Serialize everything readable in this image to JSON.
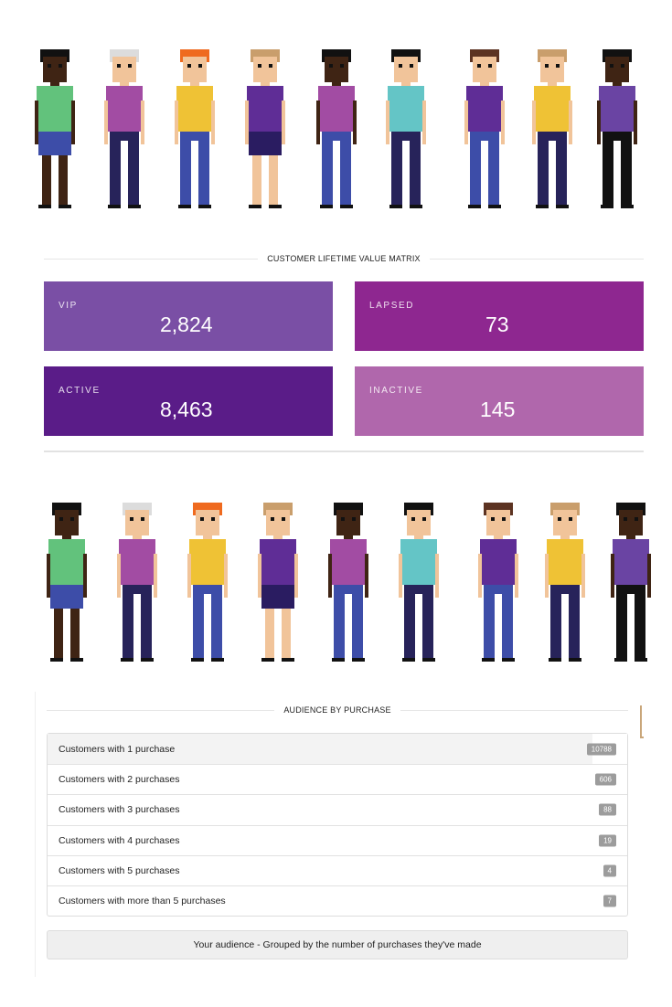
{
  "matrix": {
    "title": "CUSTOMER LIFETIME VALUE MATRIX",
    "tiles": [
      {
        "label": "VIP",
        "value": "2,824",
        "color": "#7a4fa5"
      },
      {
        "label": "LAPSED",
        "value": "73",
        "color": "#8e2790"
      },
      {
        "label": "ACTIVE",
        "value": "8,463",
        "color": "#5a1c88"
      },
      {
        "label": "INACTIVE",
        "value": "145",
        "color": "#b067ac"
      }
    ]
  },
  "audience": {
    "title": "AUDIENCE BY PURCHASE",
    "items": [
      {
        "label": "Customers with 1 purchase",
        "count": "10788"
      },
      {
        "label": "Customers with 2 purchases",
        "count": "606"
      },
      {
        "label": "Customers with 3 purchases",
        "count": "88"
      },
      {
        "label": "Customers with 4 purchases",
        "count": "19"
      },
      {
        "label": "Customers with 5 purchases",
        "count": "4"
      },
      {
        "label": "Customers with more than 5 purchases",
        "count": "7"
      }
    ],
    "footer": "Your audience - Grouped by the number of purchases they've made"
  },
  "people": [
    {
      "name": "person-1",
      "skin": "#3f2414",
      "hair": "#111111",
      "shirt": "#62c27c",
      "pants": "#3d4da8",
      "legs": "#3f2414",
      "skirt": true
    },
    {
      "name": "person-2",
      "skin": "#f1c49a",
      "hair": "#dcdcdc",
      "shirt": "#a24ca3",
      "pants": "#27235a",
      "legs": null,
      "skirt": false
    },
    {
      "name": "person-3",
      "skin": "#f1c49a",
      "hair": "#ef6a1f",
      "shirt": "#efc235",
      "pants": "#3d4da8",
      "legs": null,
      "skirt": false
    },
    {
      "name": "person-4",
      "skin": "#f1c49a",
      "hair": "#c99e6c",
      "shirt": "#5f2d96",
      "pants": "#2a1c61",
      "legs": "#f1c49a",
      "skirt": true
    },
    {
      "name": "person-5",
      "skin": "#3f2414",
      "hair": "#111111",
      "shirt": "#a24ca3",
      "pants": "#3d4da8",
      "legs": null,
      "skirt": false
    },
    {
      "name": "person-6",
      "skin": "#f1c49a",
      "hair": "#111111",
      "shirt": "#64c5c6",
      "pants": "#27235a",
      "legs": null,
      "skirt": false
    },
    {
      "name": "person-7",
      "skin": "#f1c49a",
      "hair": "#5c3322",
      "shirt": "#5f2d96",
      "pants": "#3d4da8",
      "legs": null,
      "skirt": false
    },
    {
      "name": "person-8",
      "skin": "#f1c49a",
      "hair": "#c99e6c",
      "shirt": "#efc235",
      "pants": "#27235a",
      "legs": null,
      "skirt": false
    },
    {
      "name": "person-9",
      "skin": "#3f2414",
      "hair": "#111111",
      "shirt": "#6a44a3",
      "pants": "#111111",
      "legs": null,
      "skirt": false
    }
  ]
}
